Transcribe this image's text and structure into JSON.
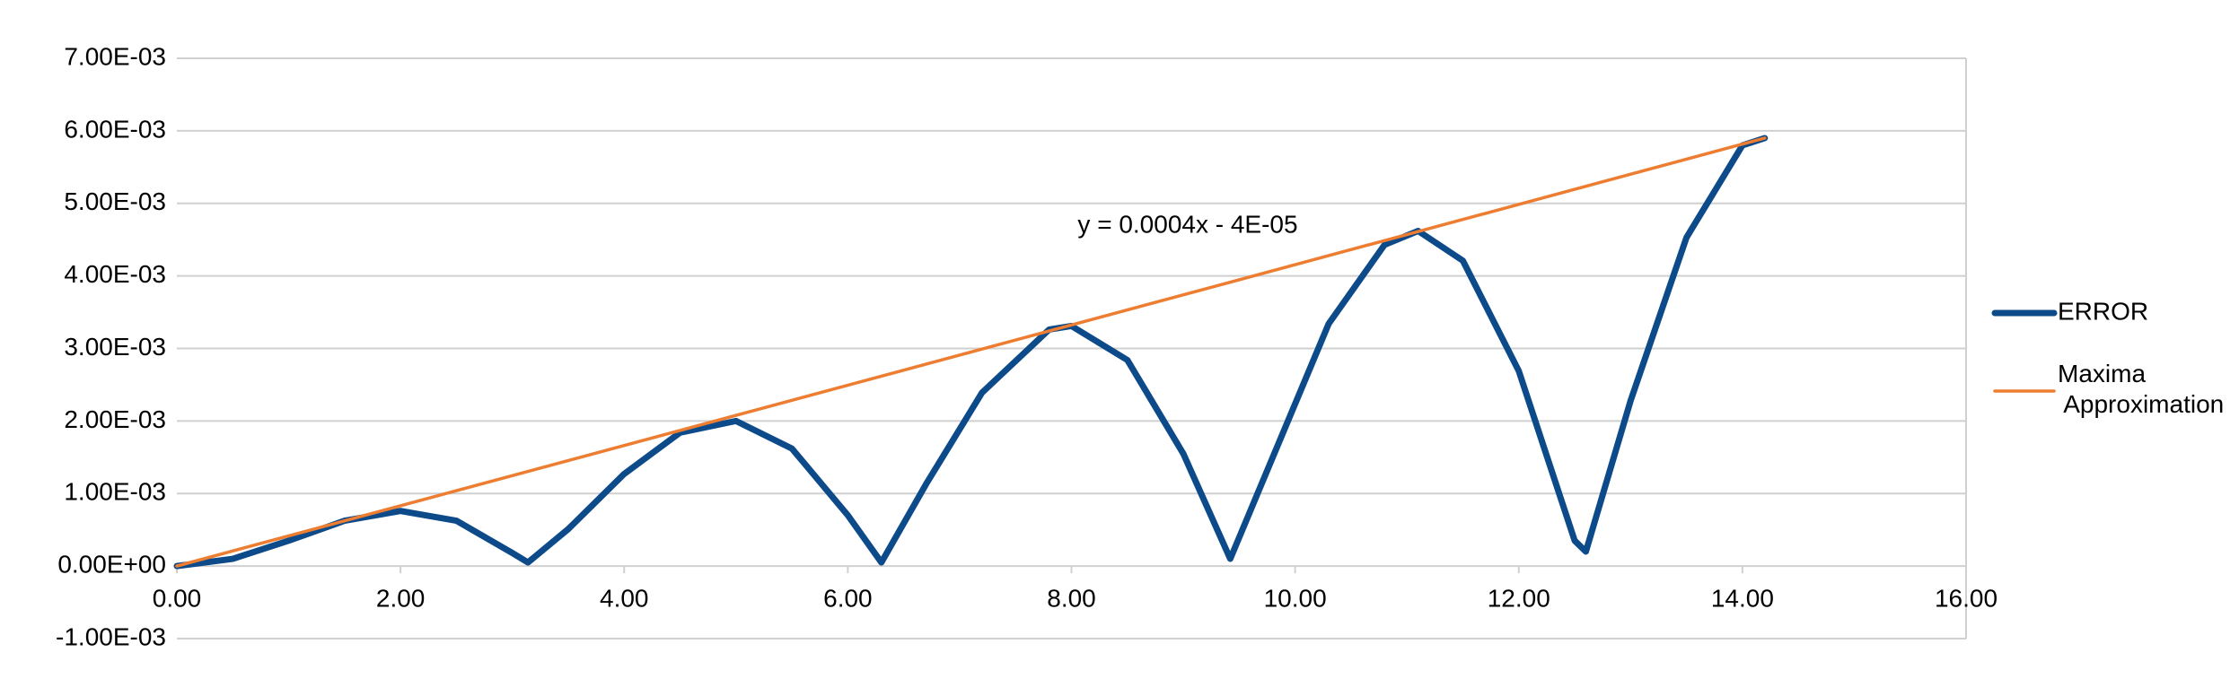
{
  "chart_data": {
    "type": "line",
    "annotation": "y = 0.0004x - 4E-05",
    "xlim": [
      0,
      16
    ],
    "xticks": [
      {
        "value": 0,
        "label": "0.00"
      },
      {
        "value": 2,
        "label": "2.00"
      },
      {
        "value": 4,
        "label": "4.00"
      },
      {
        "value": 6,
        "label": "6.00"
      },
      {
        "value": 8,
        "label": "8.00"
      },
      {
        "value": 10,
        "label": "10.00"
      },
      {
        "value": 12,
        "label": "12.00"
      },
      {
        "value": 14,
        "label": "14.00"
      },
      {
        "value": 16,
        "label": "16.00"
      }
    ],
    "ylim": [
      -0.001,
      0.007
    ],
    "yticks": [
      {
        "value": -0.001,
        "label": "-1.00E-03"
      },
      {
        "value": 0,
        "label": "0.00E+00"
      },
      {
        "value": 0.001,
        "label": "1.00E-03"
      },
      {
        "value": 0.002,
        "label": "2.00E-03"
      },
      {
        "value": 0.003,
        "label": "3.00E-03"
      },
      {
        "value": 0.004,
        "label": "4.00E-03"
      },
      {
        "value": 0.005,
        "label": "5.00E-03"
      },
      {
        "value": 0.006,
        "label": "6.00E-03"
      },
      {
        "value": 0.007,
        "label": "7.00E-03"
      }
    ],
    "grid": true,
    "legend": "right",
    "series": [
      {
        "name": "ERROR",
        "color": "#0d4a8a",
        "width": 7,
        "x": [
          0,
          0.5,
          1.0,
          1.5,
          2.0,
          2.5,
          3.0,
          3.14,
          3.5,
          4.0,
          4.5,
          5.0,
          5.5,
          6.0,
          6.3,
          6.7,
          7.2,
          7.8,
          8.0,
          8.5,
          9.0,
          9.42,
          9.8,
          10.3,
          10.8,
          11.1,
          11.5,
          12.0,
          12.5,
          12.6,
          13.0,
          13.5,
          14.0,
          14.2
        ],
        "values": [
          0,
          0.0001,
          0.00035,
          0.000625,
          0.00076,
          0.000625,
          0.00018,
          5e-05,
          0.00051,
          0.00127,
          0.00184,
          0.002,
          0.00162,
          0.0007,
          5e-05,
          0.00113,
          0.00239,
          0.00326,
          0.00331,
          0.00284,
          0.00155,
          0.0001,
          0.0015,
          0.00334,
          0.00443,
          0.00462,
          0.00421,
          0.00269,
          0.00035,
          0.0002,
          0.00228,
          0.00453,
          0.0058,
          0.0059
        ]
      },
      {
        "name": "Maxima Approximation",
        "color": "#ed7d31",
        "width": 3.5,
        "x": [
          0,
          14.2
        ],
        "values": [
          0,
          0.0059
        ]
      }
    ]
  }
}
